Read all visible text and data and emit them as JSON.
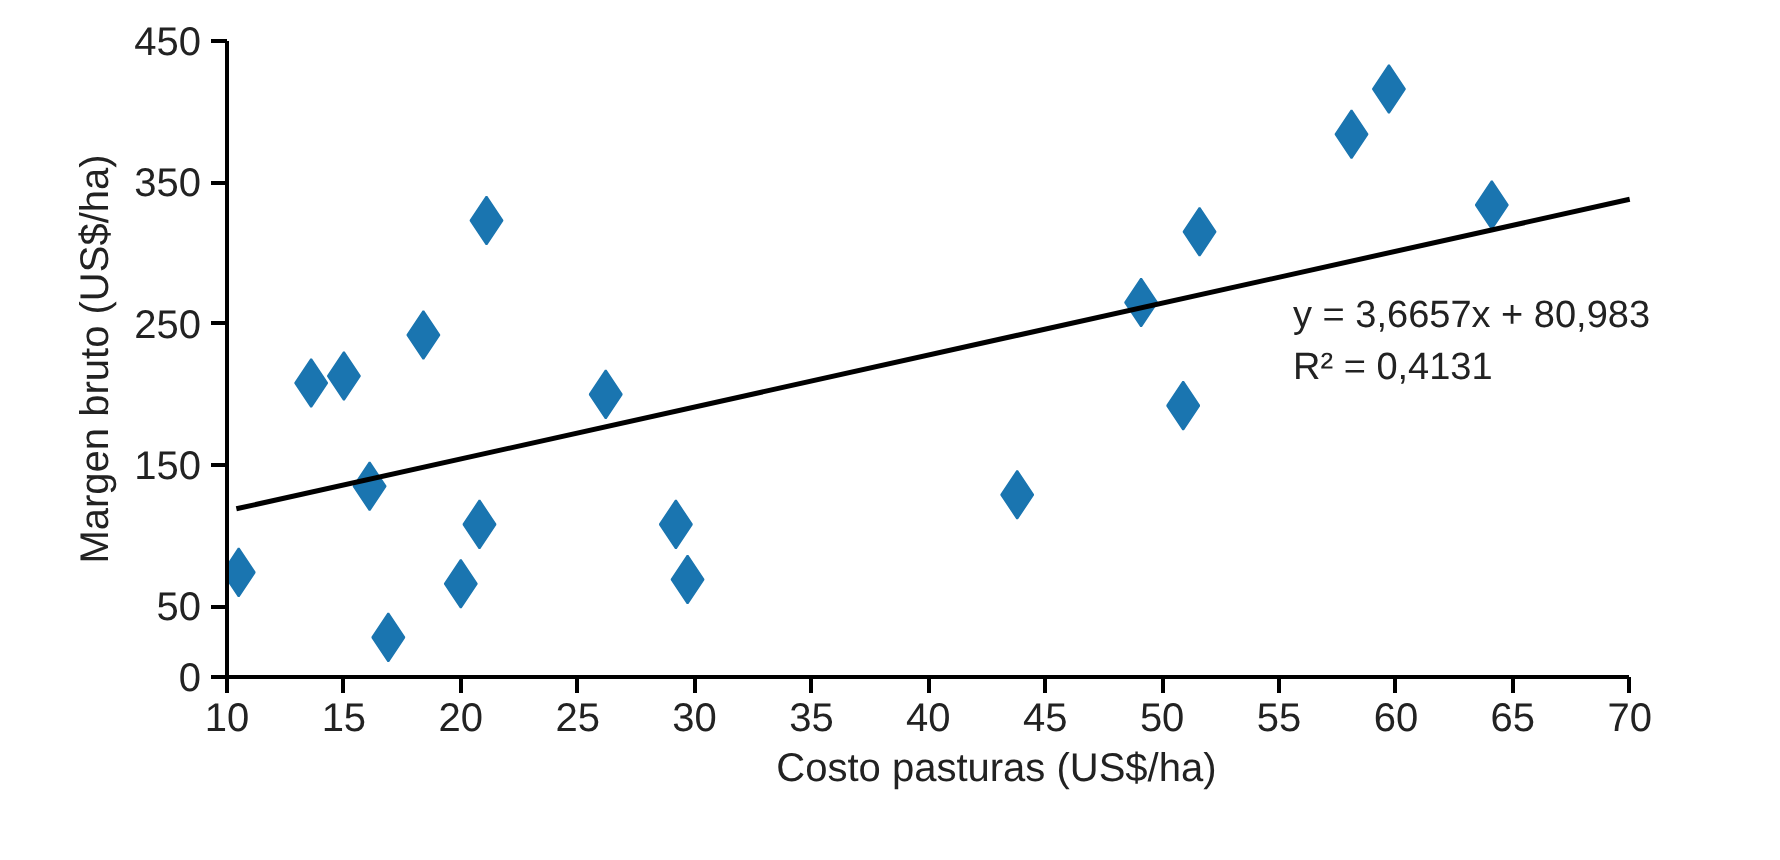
{
  "chart_data": {
    "type": "scatter",
    "xlabel": "Costo pasturas  (US$/ha)",
    "ylabel": "Margen bruto (US$/ha)",
    "xlim": [
      10,
      70
    ],
    "ylim": [
      0,
      450
    ],
    "xticks": [
      10,
      15,
      20,
      25,
      30,
      35,
      40,
      45,
      50,
      55,
      60,
      65,
      70
    ],
    "yticks": [
      0,
      50,
      150,
      250,
      350,
      450
    ],
    "grid": false,
    "series": [
      {
        "color": "#1a75b0",
        "marker": "diamond",
        "x": [
          10.5,
          13.6,
          15.0,
          16.1,
          16.9,
          18.4,
          20.0,
          20.8,
          21.1,
          26.2,
          29.2,
          29.7,
          43.8,
          49.1,
          50.9,
          51.6,
          58.1,
          59.7,
          64.1
        ],
        "values": [
          74,
          208,
          213,
          135,
          28,
          242,
          66,
          108,
          323,
          200,
          108,
          69,
          129,
          265,
          192,
          315,
          384,
          416,
          334
        ]
      },
      {
        "type": "line",
        "color": "#000000",
        "line_style": "solid",
        "x": [
          10.4,
          70
        ],
        "values": [
          119,
          338
        ]
      }
    ],
    "annotations": [
      "y = 3,6657x + 80,983",
      "R² = 0,4131"
    ]
  }
}
